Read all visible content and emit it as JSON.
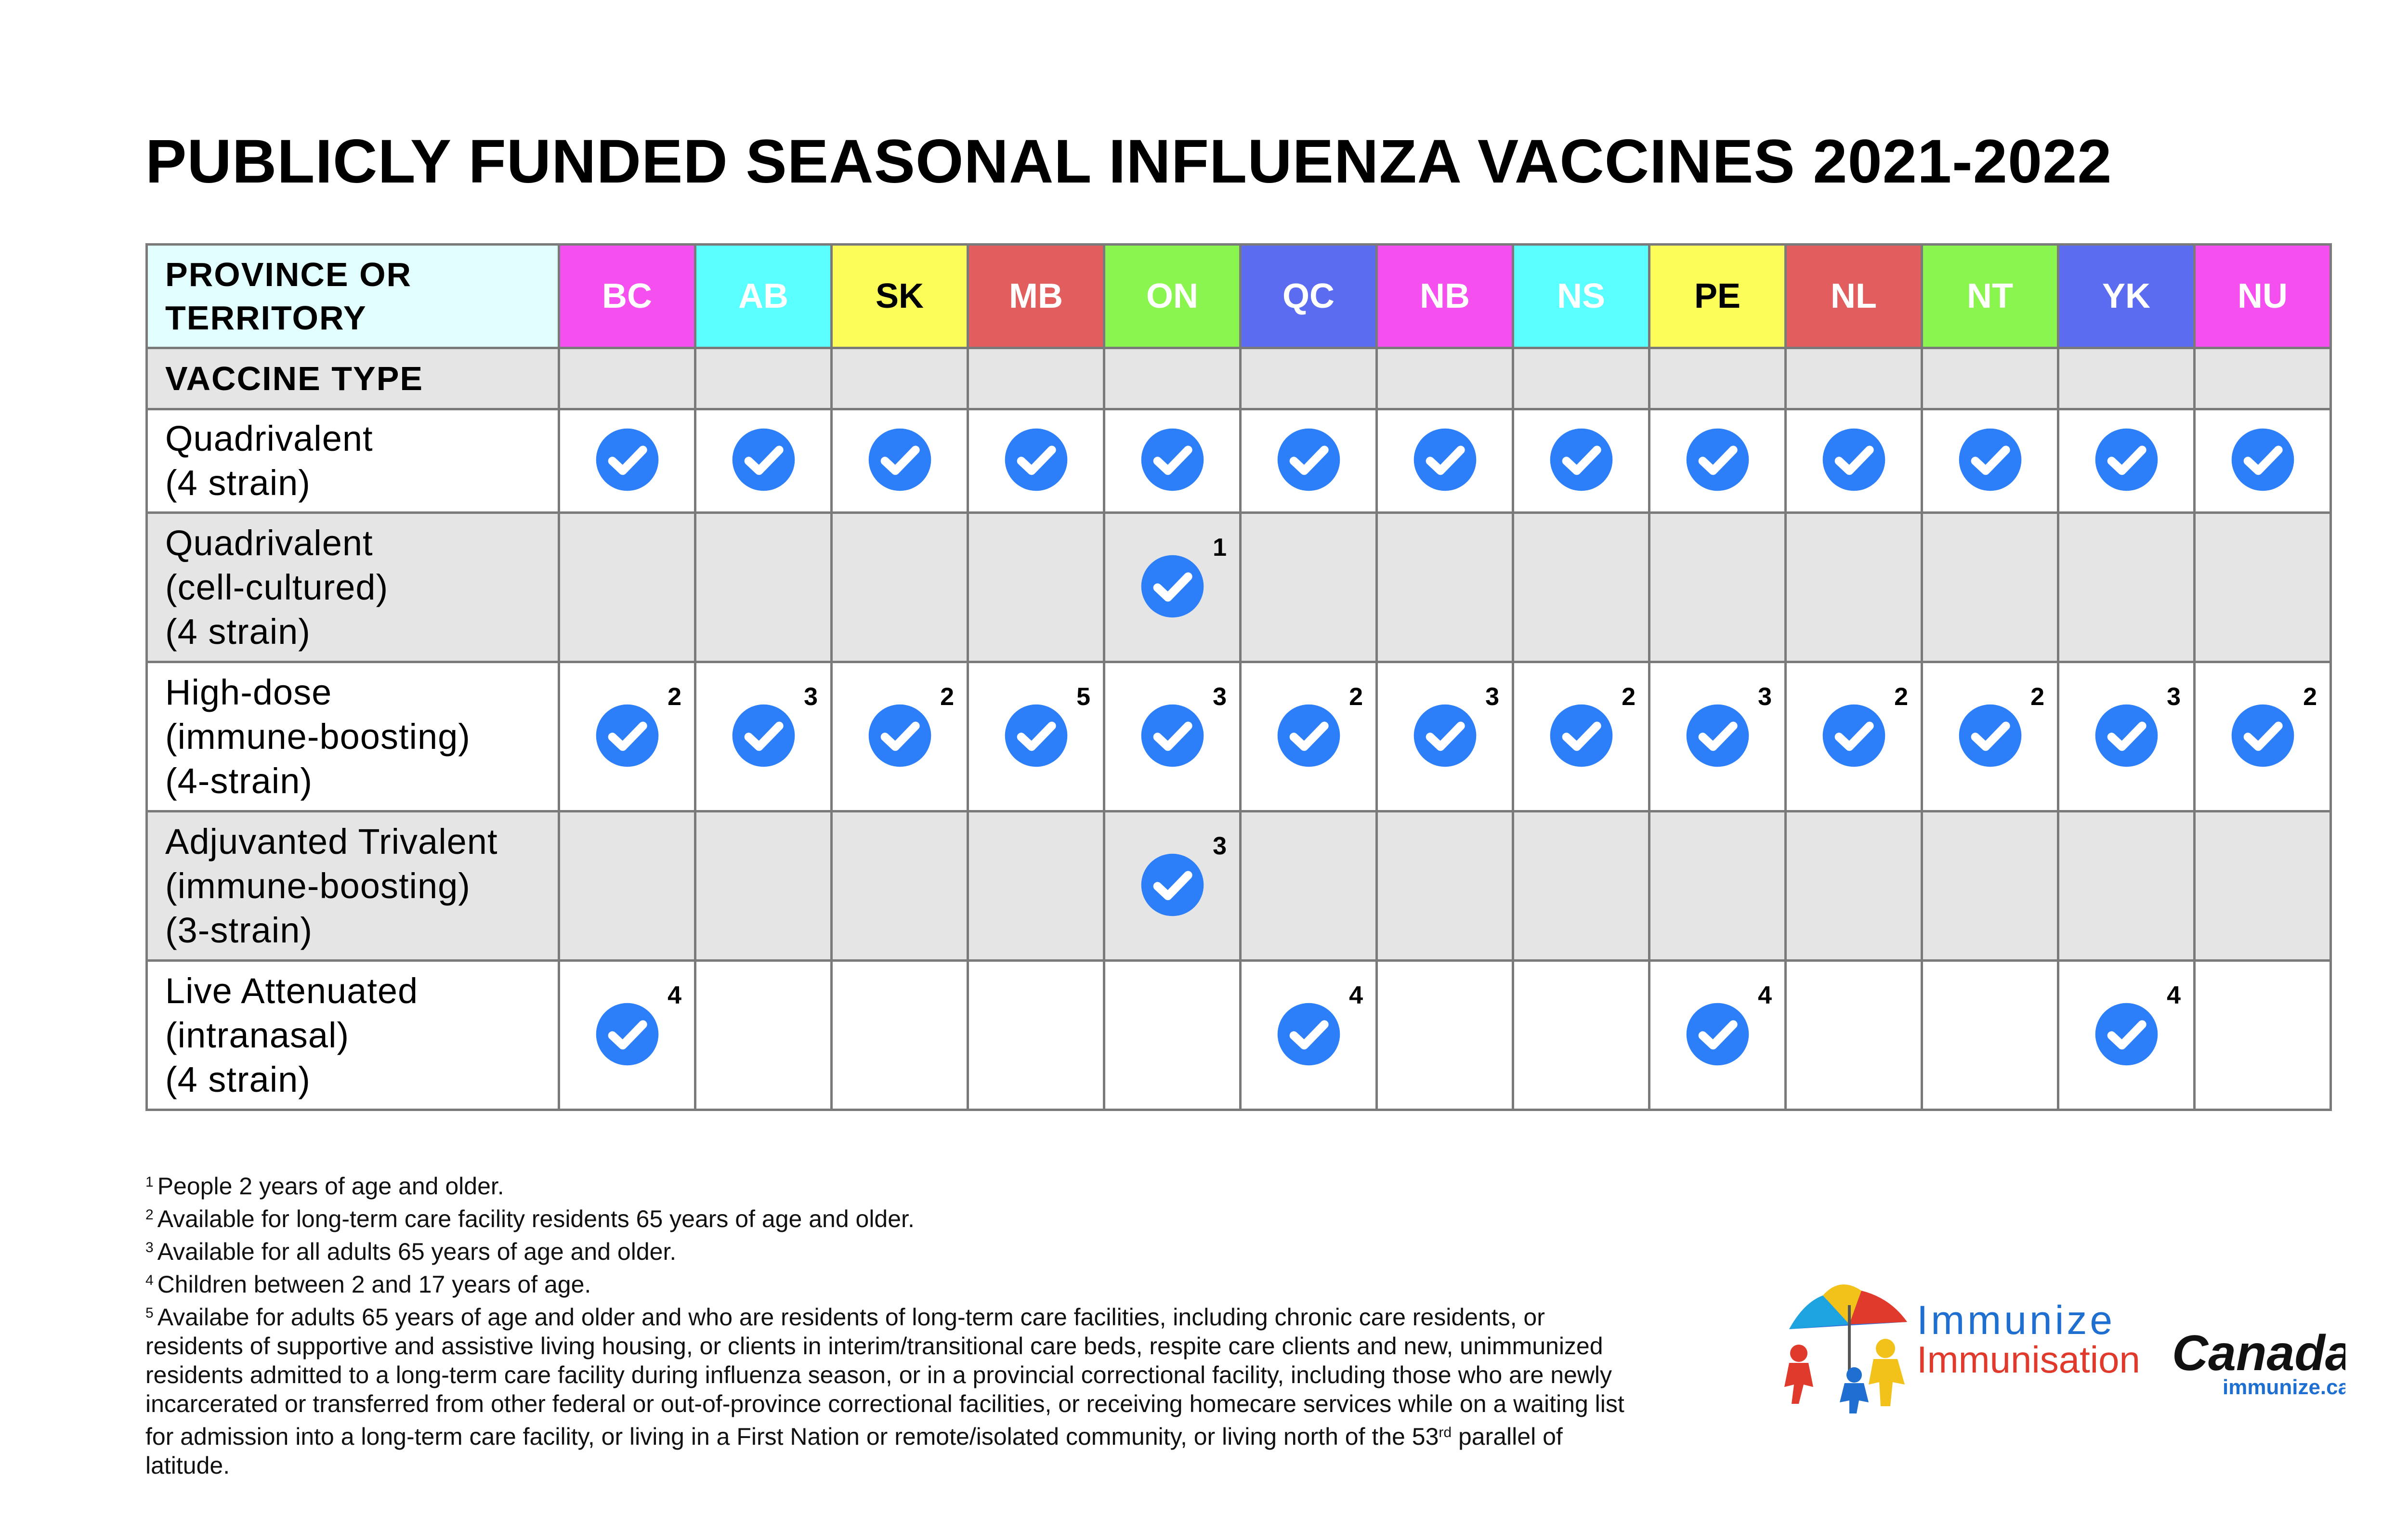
{
  "title": "PUBLICLY FUNDED SEASONAL INFLUENZA VACCINES 2021-2022",
  "header": {
    "label_line1": "PROVINCE OR",
    "label_line2": "TERRITORY",
    "vaccine_type_label": "VACCINE TYPE"
  },
  "provinces": [
    {
      "code": "BC",
      "color": "#f54ff0",
      "text_color": "#ffffff"
    },
    {
      "code": "AB",
      "color": "#5bfefe",
      "text_color": "#ffffff"
    },
    {
      "code": "SK",
      "color": "#fdfd59",
      "text_color": "#000000"
    },
    {
      "code": "MB",
      "color": "#e25d5d",
      "text_color": "#ffffff"
    },
    {
      "code": "ON",
      "color": "#8bf54f",
      "text_color": "#ffffff"
    },
    {
      "code": "QC",
      "color": "#5b6cf0",
      "text_color": "#ffffff"
    },
    {
      "code": "NB",
      "color": "#f54ff0",
      "text_color": "#ffffff"
    },
    {
      "code": "NS",
      "color": "#5bfefe",
      "text_color": "#ffffff"
    },
    {
      "code": "PE",
      "color": "#fdfd59",
      "text_color": "#000000"
    },
    {
      "code": "NL",
      "color": "#e25d5d",
      "text_color": "#ffffff"
    },
    {
      "code": "NT",
      "color": "#8bf54f",
      "text_color": "#ffffff"
    },
    {
      "code": "YK",
      "color": "#5b6cf0",
      "text_color": "#ffffff"
    },
    {
      "code": "NU",
      "color": "#f54ff0",
      "text_color": "#ffffff"
    }
  ],
  "check_color": "#2d7ff9",
  "rows": [
    {
      "label": [
        "Quadrivalent",
        "(4 strain)"
      ],
      "shade": "white",
      "cells": [
        {
          "check": true,
          "note": ""
        },
        {
          "check": true,
          "note": ""
        },
        {
          "check": true,
          "note": ""
        },
        {
          "check": true,
          "note": ""
        },
        {
          "check": true,
          "note": ""
        },
        {
          "check": true,
          "note": ""
        },
        {
          "check": true,
          "note": ""
        },
        {
          "check": true,
          "note": ""
        },
        {
          "check": true,
          "note": ""
        },
        {
          "check": true,
          "note": ""
        },
        {
          "check": true,
          "note": ""
        },
        {
          "check": true,
          "note": ""
        },
        {
          "check": true,
          "note": ""
        }
      ]
    },
    {
      "label": [
        "Quadrivalent",
        "(cell-cultured)",
        "(4 strain)"
      ],
      "shade": "gray",
      "cells": [
        {
          "check": false,
          "note": ""
        },
        {
          "check": false,
          "note": ""
        },
        {
          "check": false,
          "note": ""
        },
        {
          "check": false,
          "note": ""
        },
        {
          "check": true,
          "note": "1"
        },
        {
          "check": false,
          "note": ""
        },
        {
          "check": false,
          "note": ""
        },
        {
          "check": false,
          "note": ""
        },
        {
          "check": false,
          "note": ""
        },
        {
          "check": false,
          "note": ""
        },
        {
          "check": false,
          "note": ""
        },
        {
          "check": false,
          "note": ""
        },
        {
          "check": false,
          "note": ""
        }
      ]
    },
    {
      "label": [
        "High-dose",
        "(immune-boosting)",
        "(4-strain)"
      ],
      "shade": "white",
      "cells": [
        {
          "check": true,
          "note": "2"
        },
        {
          "check": true,
          "note": "3"
        },
        {
          "check": true,
          "note": "2"
        },
        {
          "check": true,
          "note": "5"
        },
        {
          "check": true,
          "note": "3"
        },
        {
          "check": true,
          "note": "2"
        },
        {
          "check": true,
          "note": "3"
        },
        {
          "check": true,
          "note": "2"
        },
        {
          "check": true,
          "note": "3"
        },
        {
          "check": true,
          "note": "2"
        },
        {
          "check": true,
          "note": "2"
        },
        {
          "check": true,
          "note": "3"
        },
        {
          "check": true,
          "note": "2"
        }
      ]
    },
    {
      "label": [
        "Adjuvanted Trivalent",
        "(immune-boosting)",
        "(3-strain)"
      ],
      "shade": "gray",
      "cells": [
        {
          "check": false,
          "note": ""
        },
        {
          "check": false,
          "note": ""
        },
        {
          "check": false,
          "note": ""
        },
        {
          "check": false,
          "note": ""
        },
        {
          "check": true,
          "note": "3"
        },
        {
          "check": false,
          "note": ""
        },
        {
          "check": false,
          "note": ""
        },
        {
          "check": false,
          "note": ""
        },
        {
          "check": false,
          "note": ""
        },
        {
          "check": false,
          "note": ""
        },
        {
          "check": false,
          "note": ""
        },
        {
          "check": false,
          "note": ""
        },
        {
          "check": false,
          "note": ""
        }
      ]
    },
    {
      "label": [
        "Live Attenuated",
        "(intranasal)",
        "(4 strain)"
      ],
      "shade": "white",
      "cells": [
        {
          "check": true,
          "note": "4"
        },
        {
          "check": false,
          "note": ""
        },
        {
          "check": false,
          "note": ""
        },
        {
          "check": false,
          "note": ""
        },
        {
          "check": false,
          "note": ""
        },
        {
          "check": true,
          "note": "4"
        },
        {
          "check": false,
          "note": ""
        },
        {
          "check": false,
          "note": ""
        },
        {
          "check": true,
          "note": "4"
        },
        {
          "check": false,
          "note": ""
        },
        {
          "check": false,
          "note": ""
        },
        {
          "check": true,
          "note": "4"
        },
        {
          "check": false,
          "note": ""
        }
      ]
    }
  ],
  "footnotes": {
    "n1_mark": "1",
    "n1": "People 2 years of age and older.",
    "n2_mark": "2",
    "n2": "Available for long-term care facility residents 65 years of age and older.",
    "n3_mark": "3",
    "n3": "Available for all adults 65 years of age and older.",
    "n4_mark": "4",
    "n4": "Children between 2 and 17 years of age.",
    "n5_mark": "5",
    "n5_part1": "Availabe for adults 65 years of age and older and who are residents of long-term care facilities, including chronic care residents, or residents of supportive and assistive living housing, or clients in interim/transitional care beds, respite care clients and new, unimmunized residents admitted to a long-term care facility during influenza season, or in a provincial correctional facility, including those who are newly incarcerated or transferred from other federal or out-of-province correctional facilities, or receiving homecare services while on a waiting list for admission into a long-term care facility, or living in a First Nation or remote/isolated community, or living north of the 53",
    "n5_sup": "rd",
    "n5_part2": " parallel of latitude."
  },
  "logo": {
    "word1": "Immunize",
    "word2": "Immunisation",
    "word3": "Canada",
    "url": "immunize.ca",
    "blue": "#1e6fd0",
    "red": "#e03a2c"
  }
}
